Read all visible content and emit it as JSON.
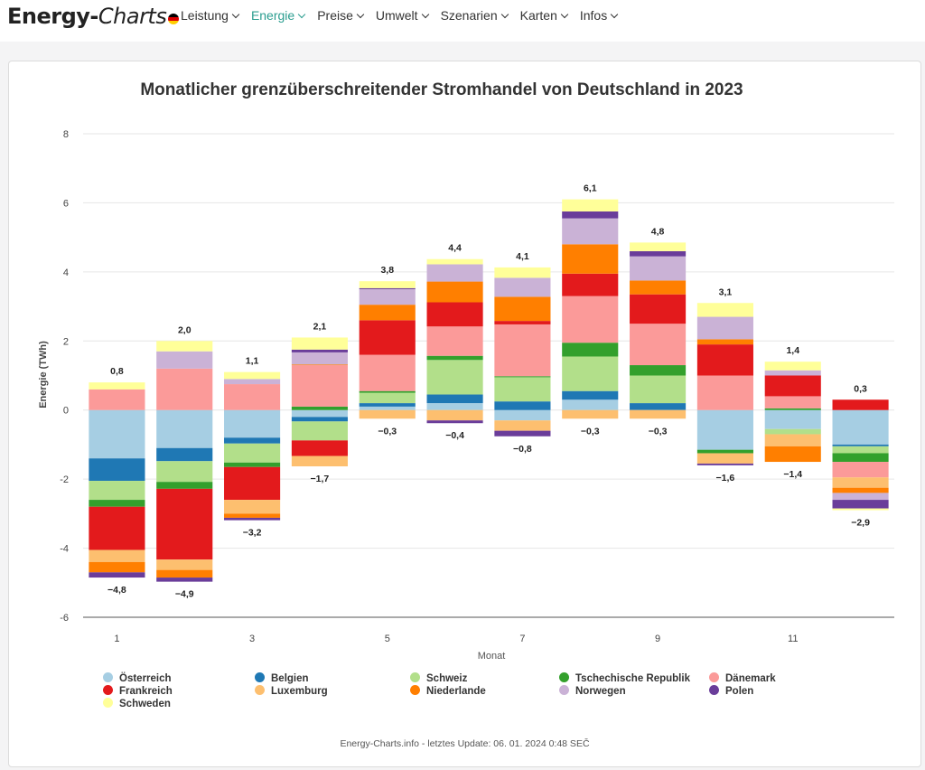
{
  "header": {
    "logo_part1": "Energy-",
    "logo_part2": "Charts",
    "nav": [
      "Leistung",
      "Energie",
      "Preise",
      "Umwelt",
      "Szenarien",
      "Karten",
      "Infos"
    ],
    "active_nav": "Energie"
  },
  "footer": "Energy-Charts.info - letztes Update: 06. 01. 2024 0:48 SEČ",
  "chart_data": {
    "type": "bar",
    "stacked": true,
    "title": "Monatlicher grenzüberschreitender Stromhandel von Deutschland in 2023",
    "xlabel": "Monat",
    "ylabel": "Energie (TWh)",
    "ylim": [
      -6,
      8
    ],
    "yticks": [
      -6,
      -4,
      -2,
      0,
      2,
      4,
      6,
      8
    ],
    "categories": [
      1,
      2,
      3,
      4,
      5,
      6,
      7,
      8,
      9,
      10,
      11,
      12
    ],
    "xtick_labels": [
      "1",
      "",
      "3",
      "",
      "5",
      "",
      "7",
      "",
      "9",
      "",
      "11",
      ""
    ],
    "grid": true,
    "series": [
      {
        "name": "Österreich",
        "color": "#a6cee3",
        "values": [
          -1.4,
          -1.1,
          -0.8,
          -0.2,
          0.1,
          0.2,
          -0.3,
          0.3,
          0.0,
          -1.15,
          -0.55,
          -1.0
        ]
      },
      {
        "name": "Belgien",
        "color": "#1f78b4",
        "values": [
          -0.65,
          -0.38,
          -0.17,
          -0.13,
          0.1,
          0.25,
          0.25,
          0.25,
          0.2,
          0.0,
          0.0,
          -0.05
        ]
      },
      {
        "name": "Schweiz",
        "color": "#b2df8a",
        "values": [
          -0.55,
          -0.6,
          -0.55,
          -0.55,
          0.3,
          1.0,
          0.7,
          1.0,
          0.8,
          0.0,
          -0.15,
          -0.2
        ]
      },
      {
        "name": "Tschechische Republik",
        "color": "#33a02c",
        "values": [
          -0.2,
          -0.2,
          -0.13,
          0.1,
          0.05,
          0.12,
          0.03,
          0.4,
          0.3,
          -0.1,
          0.05,
          -0.25
        ]
      },
      {
        "name": "Dänemark",
        "color": "#fb9a99",
        "values": [
          0.6,
          1.2,
          0.75,
          1.2,
          1.05,
          0.85,
          1.5,
          1.35,
          1.2,
          1.0,
          0.35,
          -0.45
        ]
      },
      {
        "name": "Frankreich",
        "color": "#e31a1c",
        "values": [
          -1.25,
          -2.05,
          -0.95,
          -0.45,
          1.0,
          0.7,
          0.1,
          0.65,
          0.85,
          0.9,
          0.6,
          0.3
        ]
      },
      {
        "name": "Luxemburg",
        "color": "#fdbf6f",
        "values": [
          -0.35,
          -0.3,
          -0.4,
          -0.3,
          -0.25,
          -0.3,
          -0.3,
          -0.25,
          -0.25,
          -0.3,
          -0.35,
          -0.3
        ]
      },
      {
        "name": "Niederlande",
        "color": "#ff7f00",
        "values": [
          -0.3,
          -0.22,
          -0.12,
          0.02,
          0.45,
          0.6,
          0.7,
          0.85,
          0.4,
          0.15,
          -0.45,
          -0.15
        ]
      },
      {
        "name": "Norwegen",
        "color": "#cab2d6",
        "values": [
          0.0,
          0.5,
          0.15,
          0.35,
          0.45,
          0.5,
          0.55,
          0.75,
          0.7,
          0.65,
          0.15,
          -0.2
        ]
      },
      {
        "name": "Polen",
        "color": "#6a3d9a",
        "values": [
          -0.15,
          -0.12,
          -0.07,
          0.08,
          0.03,
          -0.08,
          -0.16,
          0.2,
          0.15,
          -0.05,
          0.0,
          -0.25
        ]
      },
      {
        "name": "Schweden",
        "color": "#ffff99",
        "values": [
          0.2,
          0.3,
          0.2,
          0.35,
          0.2,
          0.15,
          0.3,
          0.35,
          0.25,
          0.4,
          0.25,
          -0.05
        ]
      }
    ],
    "positive_totals": [
      "0,8",
      "2,0",
      "1,1",
      "2,1",
      "3,8",
      "4,4",
      "4,1",
      "6,1",
      "4,8",
      "3,1",
      "1,4",
      "0,3"
    ],
    "negative_totals": [
      "−4,8",
      "−4,9",
      "−3,2",
      "−1,7",
      "−0,3",
      "−0,4",
      "−0,8",
      "−0,3",
      "−0,3",
      "−1,6",
      "−1,4",
      "−2,9"
    ]
  }
}
